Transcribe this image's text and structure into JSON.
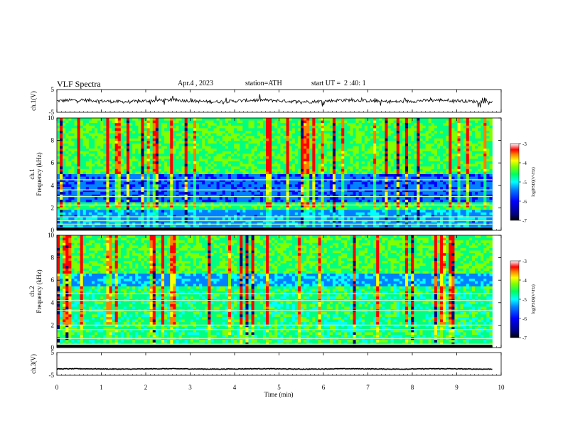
{
  "header": {
    "title": "VLF Spectra",
    "date": "Apr.4 , 2023",
    "station": "station=ATH",
    "start_ut": "start UT =  2 :40: 1"
  },
  "colors": {
    "background": "#ffffff",
    "axis": "#000000",
    "colormap": [
      "#000080",
      "#0000ff",
      "#0080ff",
      "#00ffff",
      "#00ff80",
      "#80ff00",
      "#ffff00",
      "#ff8000",
      "#ff0000",
      "#ffffff"
    ]
  },
  "chart_data": [
    {
      "type": "line",
      "panel": "ch1-waveform",
      "ylabel": "ch.1(V)",
      "ylim": [
        -5,
        5
      ],
      "yticks": [
        "5",
        "-5"
      ],
      "xlim": [
        0,
        10
      ],
      "approx_level": 0,
      "approx_amplitude": 1
    },
    {
      "type": "heatmap",
      "panel": "ch1-spectrogram",
      "ylabel_channel": "ch.1",
      "ylabel": "Frequency (kHz)",
      "ylim": [
        0,
        10
      ],
      "yticks": [
        "0",
        "2",
        "4",
        "6",
        "8",
        "10"
      ],
      "xlim": [
        0,
        10
      ],
      "colorbar": {
        "label": "log(PSD)(V²/Hz)",
        "range": [
          -7,
          -3
        ],
        "ticks": [
          "-3",
          "-4",
          "-5",
          "-6",
          "-7"
        ]
      }
    },
    {
      "type": "heatmap",
      "panel": "ch2-spectrogram",
      "ylabel_channel": "ch.2",
      "ylabel": "Frequency (kHz)",
      "ylim": [
        0,
        10
      ],
      "yticks": [
        "0",
        "2",
        "4",
        "6",
        "8",
        "10"
      ],
      "xlim": [
        0,
        10
      ],
      "colorbar": {
        "label": "log(PSD)(V²/Hz)",
        "range": [
          -7,
          -3
        ],
        "ticks": [
          "-3",
          "-4",
          "-5",
          "-6",
          "-7"
        ]
      }
    },
    {
      "type": "line",
      "panel": "ch3-waveform",
      "ylabel": "ch.3(V)",
      "ylim": [
        -5,
        5
      ],
      "yticks": [
        "5",
        "-5"
      ],
      "xlim": [
        0,
        10
      ],
      "approx_level": -2.2,
      "approx_amplitude": 0.2
    }
  ],
  "x_axis": {
    "label": "Time (min)",
    "ticks": [
      "0",
      "1",
      "2",
      "3",
      "4",
      "5",
      "6",
      "7",
      "8",
      "9",
      "10"
    ]
  }
}
